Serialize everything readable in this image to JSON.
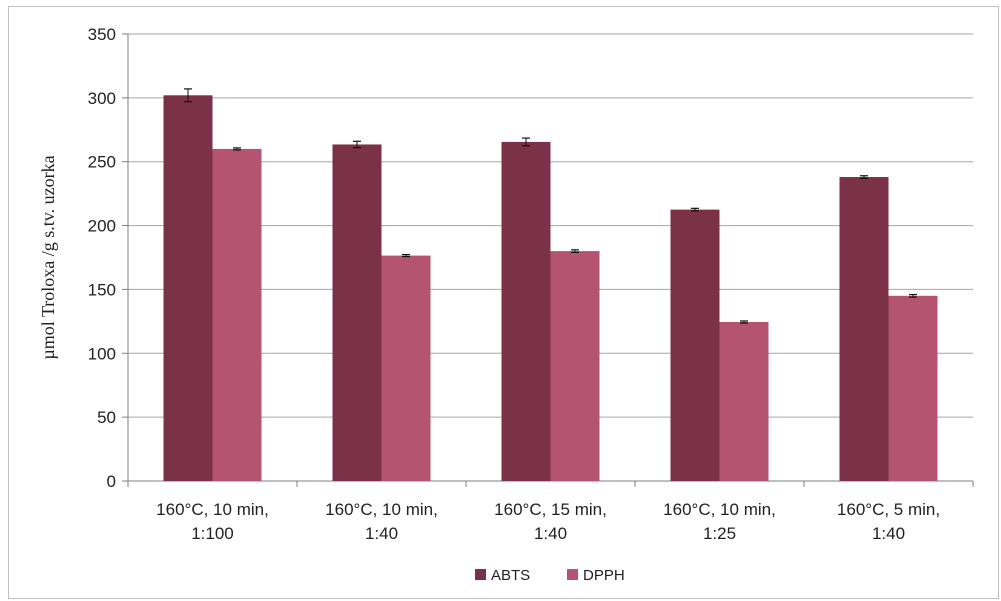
{
  "chart_data": {
    "type": "bar",
    "title": "",
    "xlabel": "",
    "ylabel": "µmol Troloxa /g s.tv. uzorka",
    "ylim": [
      0,
      350
    ],
    "yticks": [
      0,
      50,
      100,
      150,
      200,
      250,
      300,
      350
    ],
    "grid": true,
    "legend_position": "bottom",
    "categories": [
      [
        "160°C, 10 min,",
        "1:100"
      ],
      [
        "160°C, 10 min,",
        "1:40"
      ],
      [
        "160°C, 15 min,",
        "1:40"
      ],
      [
        "160°C, 10 min,",
        "1:25"
      ],
      [
        "160°C, 5 min,",
        "1:40"
      ]
    ],
    "series": [
      {
        "name": "ABTS",
        "color": "#7b3148",
        "values": [
          302,
          263.5,
          265.5,
          212.5,
          238
        ],
        "errors": [
          5,
          2.5,
          3,
          1,
          1
        ]
      },
      {
        "name": "DPPH",
        "color": "#b45471",
        "values": [
          260,
          176.5,
          180,
          124.5,
          145
        ],
        "errors": [
          0.8,
          0.8,
          1,
          0.8,
          1
        ]
      }
    ]
  }
}
